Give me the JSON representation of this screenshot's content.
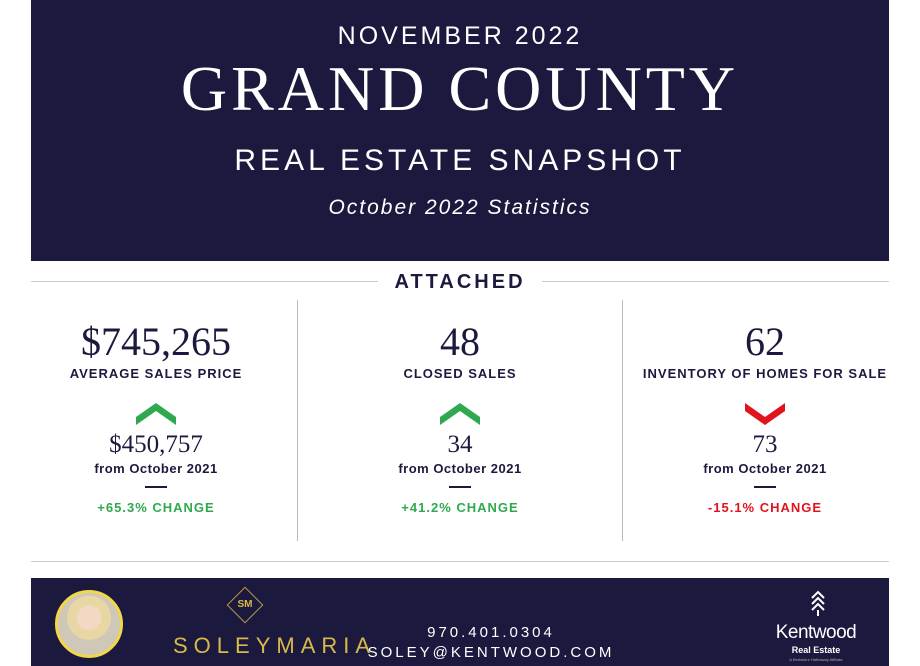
{
  "header": {
    "month": "NOVEMBER 2022",
    "county": "GRAND COUNTY",
    "subtitle": "REAL ESTATE SNAPSHOT",
    "period": "October 2022 Statistics"
  },
  "section": "ATTACHED",
  "colors": {
    "navy": "#1b1a3e",
    "up": "#2fa84f",
    "down": "#e0141e",
    "gold": "#d8b94a"
  },
  "metrics": [
    {
      "value": "$745,265",
      "label": "AVERAGE SALES PRICE",
      "direction": "up",
      "previous": "$450,757",
      "from": "from October 2021",
      "change": "+65.3% CHANGE"
    },
    {
      "value": "48",
      "label": "CLOSED SALES",
      "direction": "up",
      "previous": "34",
      "from": "from October 2021",
      "change": "+41.2% CHANGE"
    },
    {
      "value": "62",
      "label": "INVENTORY OF HOMES FOR SALE",
      "direction": "down",
      "previous": "73",
      "from": "from October 2021",
      "change": "-15.1% CHANGE"
    }
  ],
  "footer": {
    "monogram": "SM",
    "brand": "SOLEYMARIA",
    "phone": "970.401.0304",
    "email": "SOLEY@KENTWOOD.COM",
    "company": "Kentwood",
    "company_sub": "Real Estate",
    "affiliate": "A Berkshire Hathaway Affiliate"
  }
}
